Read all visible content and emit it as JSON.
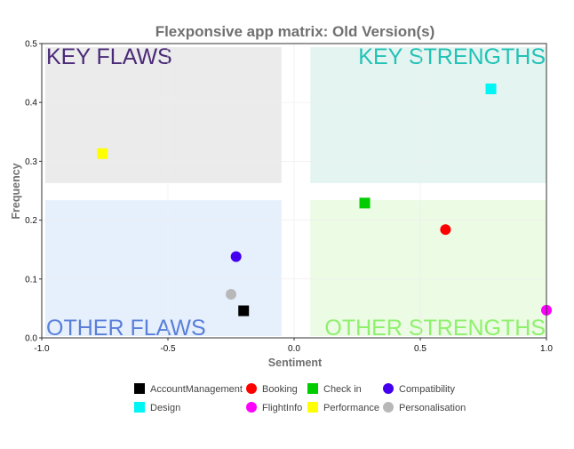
{
  "chart_data": {
    "type": "scatter",
    "title": "Flexponsive app matrix: Old Version(s)",
    "xlabel": "Sentiment",
    "ylabel": "Frequency",
    "xlim": [
      -1.0,
      1.0
    ],
    "ylim": [
      0.0,
      0.5
    ],
    "xticks": [
      "-1.0",
      "-0.5",
      "0.0",
      "0.5",
      "1.0"
    ],
    "xtick_values": [
      -1.0,
      -0.5,
      0.0,
      0.5,
      1.0
    ],
    "yticks": [
      "0.0",
      "0.1",
      "0.2",
      "0.3",
      "0.4",
      "0.5"
    ],
    "ytick_values": [
      0.0,
      0.1,
      0.2,
      0.3,
      0.4,
      0.5
    ],
    "grid": true,
    "legend_position": "bottom",
    "quadrants": [
      {
        "label": "KEY FLAWS",
        "x_range": [
          -1.0,
          -0.05
        ],
        "y_range": [
          0.26,
          0.5
        ],
        "fill": "#ebebeb",
        "text_color": "#4b2a78",
        "anchor": "top-left"
      },
      {
        "label": "KEY STRENGTHS",
        "x_range": [
          0.05,
          1.0
        ],
        "y_range": [
          0.26,
          0.5
        ],
        "fill": "#e4f4f1",
        "text_color": "#22c2b6",
        "anchor": "top-right"
      },
      {
        "label": "OTHER FLAWS",
        "x_range": [
          -1.0,
          -0.05
        ],
        "y_range": [
          0.0,
          0.24
        ],
        "fill": "#e6f0fd",
        "text_color": "#5a7fd9",
        "anchor": "bottom-left"
      },
      {
        "label": "OTHER STRENGTHS",
        "x_range": [
          0.05,
          1.0
        ],
        "y_range": [
          0.0,
          0.24
        ],
        "fill": "#ebfbe4",
        "text_color": "#8ff06e",
        "anchor": "bottom-right"
      }
    ],
    "series": [
      {
        "name": "AccountManagement",
        "color": "#000000",
        "shape": "square",
        "x": -0.2,
        "y": 0.046
      },
      {
        "name": "Booking",
        "color": "#ff0000",
        "shape": "circle",
        "x": 0.6,
        "y": 0.184
      },
      {
        "name": "Check in",
        "color": "#00cc00",
        "shape": "square",
        "x": 0.28,
        "y": 0.229
      },
      {
        "name": "Compatibility",
        "color": "#4400ee",
        "shape": "circle",
        "x": -0.23,
        "y": 0.138
      },
      {
        "name": "Design",
        "color": "#00f5f5",
        "shape": "square",
        "x": 0.78,
        "y": 0.423
      },
      {
        "name": "FlightInfo",
        "color": "#ff00ff",
        "shape": "circle",
        "x": 1.0,
        "y": 0.047
      },
      {
        "name": "Performance",
        "color": "#ffff00",
        "shape": "square",
        "x": -0.76,
        "y": 0.313
      },
      {
        "name": "Personalisation",
        "color": "#b8b8b8",
        "shape": "circle",
        "x": -0.25,
        "y": 0.074
      }
    ]
  }
}
